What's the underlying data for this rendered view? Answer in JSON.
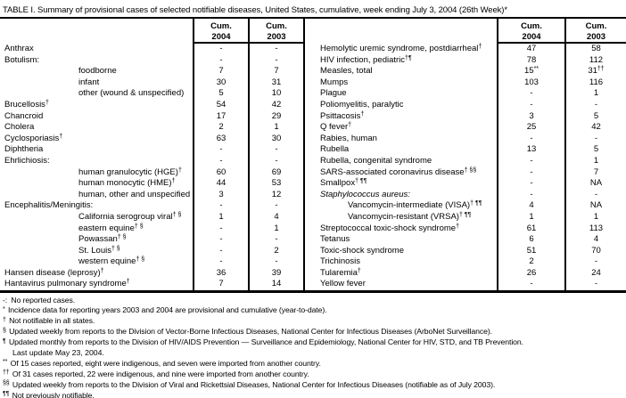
{
  "title": "TABLE I. Summary of provisional cases of selected notifiable diseases, United States, cumulative, week ending July 3, 2004 (26th Week)*",
  "table": {
    "header": {
      "cum": "Cum.",
      "y2004": "2004",
      "y2003": "2003"
    },
    "left": {
      "rows": [
        {
          "label": "Anthrax",
          "v04": "-",
          "v03": "-"
        },
        {
          "label": "Botulism:",
          "v04": "-",
          "v03": "-"
        },
        {
          "label": "foodborne",
          "ind": 1,
          "v04": "7",
          "v03": "7"
        },
        {
          "label": "infant",
          "ind": 1,
          "v04": "30",
          "v03": "31"
        },
        {
          "label": "other (wound & unspecified)",
          "ind": 1,
          "v04": "5",
          "v03": "10"
        },
        {
          "label": "Brucellosis",
          "sup": "†",
          "v04": "54",
          "v03": "42"
        },
        {
          "label": "Chancroid",
          "v04": "17",
          "v03": "29"
        },
        {
          "label": "Cholera",
          "v04": "2",
          "v03": "1"
        },
        {
          "label": "Cyclosporiasis",
          "sup": "†",
          "v04": "63",
          "v03": "30"
        },
        {
          "label": "Diphtheria",
          "v04": "-",
          "v03": "-"
        },
        {
          "label": "Ehrlichiosis:",
          "v04": "-",
          "v03": "-"
        },
        {
          "label": "human granulocytic (HGE)",
          "sup": "†",
          "ind": 1,
          "v04": "60",
          "v03": "69"
        },
        {
          "label": "human monocytic (HME)",
          "sup": "†",
          "ind": 1,
          "v04": "44",
          "v03": "53"
        },
        {
          "label": "human, other and unspecified",
          "ind": 1,
          "v04": "3",
          "v03": "12"
        },
        {
          "label": "Encephalitis/Meningitis:",
          "v04": "-",
          "v03": "-"
        },
        {
          "label": "California serogroup viral",
          "sup": "† §",
          "ind": 1,
          "v04": "1",
          "v03": "4"
        },
        {
          "label": "eastern equine",
          "sup": "† §",
          "ind": 1,
          "v04": "-",
          "v03": "1"
        },
        {
          "label": "Powassan",
          "sup": "† §",
          "ind": 1,
          "v04": "-",
          "v03": "-"
        },
        {
          "label": "St. Louis",
          "sup": "† §",
          "ind": 1,
          "v04": "-",
          "v03": "2"
        },
        {
          "label": "western equine",
          "sup": "† §",
          "ind": 1,
          "v04": "-",
          "v03": "-"
        },
        {
          "label": "Hansen disease (leprosy)",
          "sup": "†",
          "v04": "36",
          "v03": "39"
        },
        {
          "label": "Hantavirus pulmonary syndrome",
          "sup": "†",
          "v04": "7",
          "v03": "14"
        }
      ]
    },
    "right": {
      "rows": [
        {
          "label": "Hemolytic uremic syndrome, postdiarrheal",
          "sup": "†",
          "v04": "47",
          "v03": "58"
        },
        {
          "label": "HIV infection, pediatric",
          "sup": "†¶",
          "v04": "78",
          "v03": "112"
        },
        {
          "label": "Measles, total",
          "v04": "15",
          "v04s": "**",
          "v03": "31",
          "v03s": "††"
        },
        {
          "label": "Mumps",
          "v04": "103",
          "v03": "116"
        },
        {
          "label": "Plague",
          "v04": "-",
          "v03": "1"
        },
        {
          "label": "Poliomyelitis, paralytic",
          "v04": "-",
          "v03": "-"
        },
        {
          "label": "Psittacosis",
          "sup": "†",
          "v04": "3",
          "v03": "5"
        },
        {
          "label": "Q fever",
          "sup": "†",
          "v04": "25",
          "v03": "42"
        },
        {
          "label": "Rabies, human",
          "v04": "-",
          "v03": "-"
        },
        {
          "label": "Rubella",
          "v04": "13",
          "v03": "5"
        },
        {
          "label": "Rubella, congenital syndrome",
          "v04": "-",
          "v03": "1"
        },
        {
          "label": "SARS-associated coronavirus disease",
          "sup": "† §§",
          "v04": "-",
          "v03": "7"
        },
        {
          "label": "Smallpox",
          "sup": "† ¶¶",
          "v04": "-",
          "v03": "NA"
        },
        {
          "label": "Staphylococcus aureus:",
          "ital": 1,
          "v04": "-",
          "v03": "-"
        },
        {
          "label": "Vancomycin-intermediate (VISA)",
          "sup": "† ¶¶",
          "ind": 1,
          "v04": "4",
          "v03": "NA"
        },
        {
          "label": "Vancomycin-resistant (VRSA)",
          "sup": "† ¶¶",
          "ind": 1,
          "v04": "1",
          "v03": "1"
        },
        {
          "label": "Streptococcal toxic-shock syndrome",
          "sup": "†",
          "v04": "61",
          "v03": "113"
        },
        {
          "label": "Tetanus",
          "v04": "6",
          "v03": "4"
        },
        {
          "label": "Toxic-shock syndrome",
          "v04": "51",
          "v03": "70"
        },
        {
          "label": "Trichinosis",
          "v04": "2",
          "v03": "-"
        },
        {
          "label": "Tularemia",
          "sup": "†",
          "v04": "26",
          "v03": "24"
        },
        {
          "label": "Yellow fever",
          "v04": "-",
          "v03": "-"
        }
      ]
    }
  },
  "footnotes": [
    {
      "marker": "-:",
      "plain": 1,
      "text": "No reported cases."
    },
    {
      "marker": "*",
      "text": "Incidence data for reporting years 2003 and 2004 are provisional and cumulative (year-to-date)."
    },
    {
      "marker": "†",
      "text": "Not notifiable in all states."
    },
    {
      "marker": "§",
      "text": "Updated weekly from reports to the Division of Vector-Borne Infectious Diseases, National Center for Infectious Diseases (ArboNet Surveillance)."
    },
    {
      "marker": "¶",
      "text": "Updated monthly from reports to the Division of HIV/AIDS Prevention — Surveillance and Epidemiology, National Center for HIV, STD, and TB Prevention.",
      "text2": "Last update May 23, 2004."
    },
    {
      "marker": "**",
      "text": "Of 15 cases reported, eight were indigenous, and seven were imported from another country."
    },
    {
      "marker": "††",
      "text": "Of 31 cases reported, 22 were indigenous, and nine were imported from another country."
    },
    {
      "marker": "§§",
      "text": "Updated weekly from reports to the Division of Viral and Rickettsial Diseases, National Center for Infectious Diseases (notifiable as of July 2003)."
    },
    {
      "marker": "¶¶",
      "text": "Not previously notifiable."
    }
  ]
}
